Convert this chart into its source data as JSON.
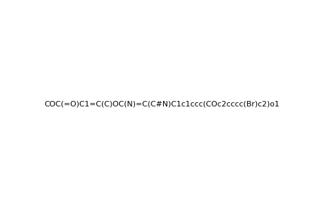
{
  "smiles": "COC(=O)C1=C(C)OC(N)=C(C#N)C1c1ccc(COc2cccc(Br)c2)o1",
  "title": "",
  "bg_color": "#ffffff",
  "line_color": "#000000",
  "figsize": [
    4.6,
    3.0
  ],
  "dpi": 100
}
